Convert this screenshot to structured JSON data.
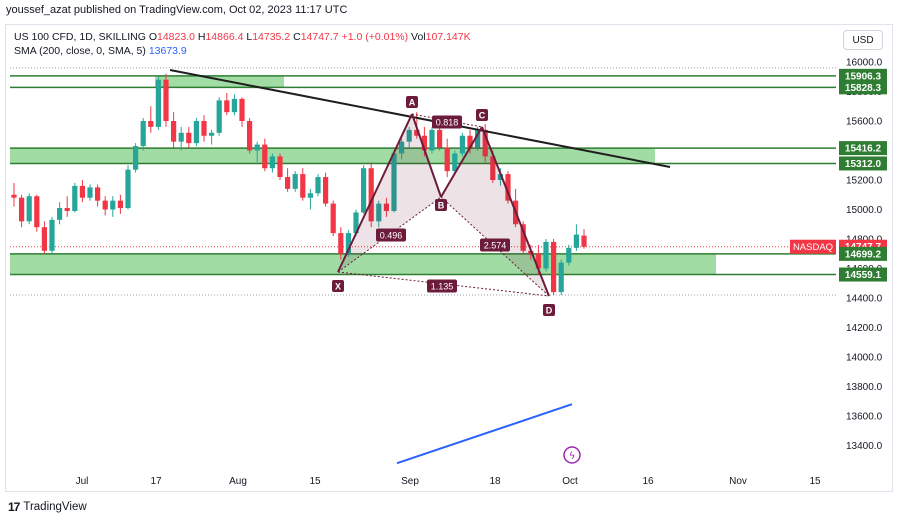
{
  "header": {
    "published": "youssef_azat published on TradingView.com, Oct 02, 2023 11:17 UTC"
  },
  "legend": {
    "symbol": "US 100 CFD, 1D, SKILLING",
    "o_label": "O",
    "o": "14823.0",
    "h_label": "H",
    "h": "14866.4",
    "l_label": "L",
    "l": "14735.2",
    "c_label": "C",
    "c": "14747.7",
    "change": "+1.0 (+0.01%)",
    "vol_label": "Vol",
    "vol": "107.147K",
    "sma_label": "SMA (200, close, 0, SMA, 5)",
    "sma_value": "13673.9"
  },
  "currency_button": "USD",
  "footer": {
    "brand": "TradingView",
    "logo_mark": "17"
  },
  "colors": {
    "up": "#26a69a",
    "down": "#f23645",
    "zone": "#8fd694",
    "zone_border": "#2e7d32",
    "pattern": "#6d1b3b",
    "sma": "#2962ff",
    "trend": "#1e1e1e"
  },
  "chart_data": {
    "type": "candlestick",
    "x_ticks": [
      "Jul",
      "17",
      "Aug",
      "15",
      "Sep",
      "18",
      "Oct",
      "16",
      "Nov",
      "15"
    ],
    "y_ticks": [
      "16000.0",
      "15800.0",
      "15600.0",
      "15400.0",
      "15200.0",
      "15000.0",
      "14800.0",
      "14600.0",
      "14400.0",
      "14200.0",
      "14000.0",
      "13800.0",
      "13600.0",
      "13400.0"
    ],
    "price_labels": [
      {
        "text": "15906.3",
        "value": 15906.3,
        "style": "zone"
      },
      {
        "text": "15828.3",
        "value": 15828.3,
        "style": "zone"
      },
      {
        "text": "15416.2",
        "value": 15416.2,
        "style": "zone"
      },
      {
        "text": "15312.0",
        "value": 15312.0,
        "style": "zone"
      },
      {
        "text": "14747.7",
        "value": 14747.7,
        "style": "last"
      },
      {
        "text": "14699.2",
        "value": 14699.2,
        "style": "zone"
      },
      {
        "text": "14559.1",
        "value": 14559.1,
        "style": "zone"
      }
    ],
    "symbol_tag": "NASDAQ",
    "zones": [
      {
        "from": 15828.3,
        "to": 15906.3,
        "x0": "17",
        "x1": "Aug",
        "extended": true
      },
      {
        "from": 15312.0,
        "to": 15416.2,
        "x0": "Jul",
        "x1": "16",
        "extended": true
      },
      {
        "from": 14559.1,
        "to": 14699.2,
        "x0": "Jul",
        "x1": "Oct-late",
        "extended": true
      }
    ],
    "harmonic_points": [
      {
        "label": "X",
        "price": 14600
      },
      {
        "label": "A",
        "price": 15640
      },
      {
        "label": "B",
        "price": 15110
      },
      {
        "label": "C",
        "price": 15560
      },
      {
        "label": "D",
        "price": 14400
      }
    ],
    "ratios": [
      "0.496",
      "0.818",
      "2.574",
      "1.135"
    ],
    "sma_values": [
      13280,
      13680
    ],
    "candles": [
      [
        15100,
        15180,
        15020,
        15080
      ],
      [
        15080,
        15100,
        14880,
        14920
      ],
      [
        14920,
        15110,
        14900,
        15090
      ],
      [
        15090,
        15100,
        14850,
        14880
      ],
      [
        14880,
        14920,
        14700,
        14720
      ],
      [
        14720,
        14950,
        14700,
        14930
      ],
      [
        14930,
        15050,
        14900,
        15010
      ],
      [
        15010,
        15090,
        14950,
        14990
      ],
      [
        14990,
        15180,
        14980,
        15160
      ],
      [
        15160,
        15200,
        15050,
        15080
      ],
      [
        15080,
        15170,
        15060,
        15150
      ],
      [
        15150,
        15170,
        15020,
        15060
      ],
      [
        15060,
        15090,
        14960,
        15000
      ],
      [
        15000,
        15090,
        14950,
        15060
      ],
      [
        15060,
        15100,
        14970,
        15010
      ],
      [
        15010,
        15300,
        15000,
        15270
      ],
      [
        15270,
        15450,
        15250,
        15430
      ],
      [
        15430,
        15620,
        15400,
        15600
      ],
      [
        15600,
        15700,
        15520,
        15560
      ],
      [
        15560,
        15900,
        15540,
        15880
      ],
      [
        15880,
        15920,
        15560,
        15600
      ],
      [
        15600,
        15660,
        15420,
        15460
      ],
      [
        15460,
        15560,
        15400,
        15520
      ],
      [
        15520,
        15560,
        15420,
        15450
      ],
      [
        15450,
        15620,
        15430,
        15600
      ],
      [
        15600,
        15640,
        15460,
        15500
      ],
      [
        15500,
        15540,
        15440,
        15520
      ],
      [
        15520,
        15760,
        15500,
        15740
      ],
      [
        15740,
        15790,
        15640,
        15660
      ],
      [
        15660,
        15780,
        15640,
        15750
      ],
      [
        15750,
        15760,
        15560,
        15600
      ],
      [
        15600,
        15620,
        15380,
        15400
      ],
      [
        15400,
        15460,
        15320,
        15440
      ],
      [
        15440,
        15480,
        15260,
        15280
      ],
      [
        15280,
        15380,
        15250,
        15360
      ],
      [
        15360,
        15380,
        15200,
        15220
      ],
      [
        15220,
        15280,
        15120,
        15140
      ],
      [
        15140,
        15260,
        15120,
        15240
      ],
      [
        15240,
        15280,
        15060,
        15080
      ],
      [
        15080,
        15140,
        15000,
        15110
      ],
      [
        15110,
        15240,
        15090,
        15220
      ],
      [
        15220,
        15250,
        15020,
        15040
      ],
      [
        15040,
        15060,
        14820,
        14840
      ],
      [
        14840,
        14880,
        14660,
        14700
      ],
      [
        14700,
        14860,
        14680,
        14840
      ],
      [
        14840,
        15000,
        14820,
        14980
      ],
      [
        14980,
        15300,
        14970,
        15280
      ],
      [
        15280,
        15320,
        14880,
        14920
      ],
      [
        14920,
        15060,
        14880,
        15040
      ],
      [
        15040,
        15080,
        14950,
        14990
      ],
      [
        14990,
        15400,
        14980,
        15380
      ],
      [
        15380,
        15480,
        15340,
        15460
      ],
      [
        15460,
        15560,
        15420,
        15540
      ],
      [
        15540,
        15660,
        15480,
        15500
      ],
      [
        15500,
        15560,
        15360,
        15400
      ],
      [
        15400,
        15560,
        15380,
        15540
      ],
      [
        15540,
        15580,
        15400,
        15420
      ],
      [
        15420,
        15480,
        15220,
        15260
      ],
      [
        15260,
        15400,
        15240,
        15380
      ],
      [
        15380,
        15520,
        15360,
        15500
      ],
      [
        15500,
        15540,
        15380,
        15420
      ],
      [
        15420,
        15560,
        15400,
        15540
      ],
      [
        15540,
        15580,
        15320,
        15360
      ],
      [
        15360,
        15400,
        15180,
        15200
      ],
      [
        15200,
        15280,
        15160,
        15240
      ],
      [
        15240,
        15260,
        15040,
        15060
      ],
      [
        15060,
        15140,
        14880,
        14900
      ],
      [
        14900,
        14920,
        14700,
        14720
      ],
      [
        14720,
        14760,
        14660,
        14700
      ],
      [
        14700,
        14760,
        14560,
        14600
      ],
      [
        14600,
        14800,
        14580,
        14780
      ],
      [
        14780,
        14800,
        14420,
        14440
      ],
      [
        14440,
        14660,
        14420,
        14640
      ],
      [
        14640,
        14760,
        14620,
        14740
      ],
      [
        14740,
        14900,
        14720,
        14830
      ],
      [
        14823,
        14866,
        14735,
        14748
      ]
    ]
  }
}
